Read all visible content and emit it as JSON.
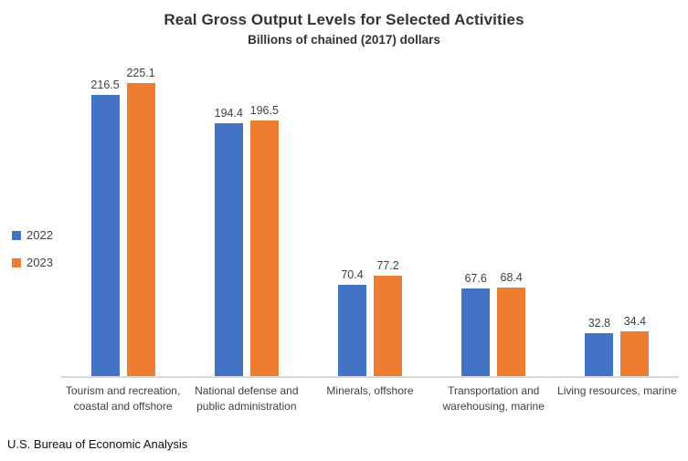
{
  "header": {
    "title": "Real Gross Output Levels for Selected Activities",
    "subtitle": "Billions of chained (2017) dollars"
  },
  "footer": {
    "source": "U.S. Bureau of Economic Analysis"
  },
  "colors": {
    "series_2022": "#4472C4",
    "series_2023": "#ED7D31",
    "axis_line": "#d9d9d9",
    "label_text": "#404040"
  },
  "chart_data": {
    "type": "bar",
    "title": "Real Gross Output Levels for Selected Activities",
    "subtitle": "Billions of chained (2017) dollars",
    "categories": [
      "Tourism and recreation, coastal and offshore",
      "National defense and public administration",
      "Minerals, offshore",
      "Transportation and warehousing, marine",
      "Living resources, marine"
    ],
    "series": [
      {
        "name": "2022",
        "color": "#4472C4",
        "values": [
          216.5,
          194.4,
          70.4,
          67.6,
          32.8
        ]
      },
      {
        "name": "2023",
        "color": "#ED7D31",
        "values": [
          225.1,
          196.5,
          77.2,
          68.4,
          34.4
        ]
      }
    ],
    "value_labels": true,
    "grid": false,
    "legend_position": "left",
    "xlabel": "",
    "ylabel": "",
    "ylim": [
      0,
      240
    ]
  }
}
